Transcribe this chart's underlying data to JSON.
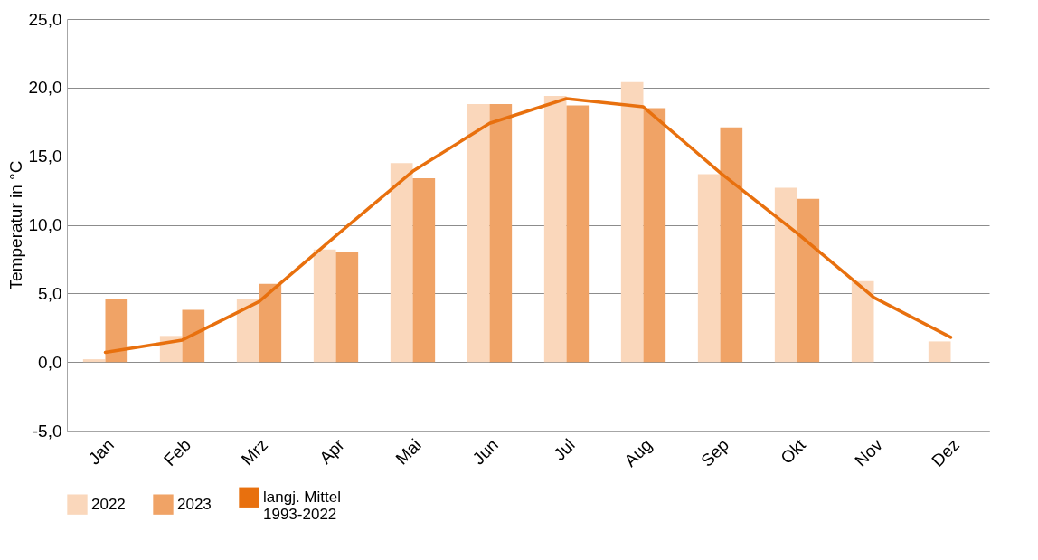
{
  "chart_data": {
    "type": "bar",
    "ylabel": "Temperatur in °C",
    "categories": [
      "Jan",
      "Feb",
      "Mrz",
      "Apr",
      "Mai",
      "Jun",
      "Jul",
      "Aug",
      "Sep",
      "Okt",
      "Nov",
      "Dez"
    ],
    "series": [
      {
        "name": "2022",
        "color": "#fad7bb",
        "values": [
          0.2,
          1.9,
          4.6,
          8.2,
          14.5,
          18.8,
          19.4,
          20.4,
          13.7,
          12.7,
          5.9,
          1.5
        ]
      },
      {
        "name": "2023",
        "color": "#f0a366",
        "values": [
          4.6,
          3.8,
          5.7,
          8.0,
          13.4,
          18.8,
          18.7,
          18.5,
          17.1,
          11.9,
          null,
          null
        ]
      },
      {
        "name": "langj. Mittel\n1993-2022",
        "type": "line",
        "color": "#e8700e",
        "values": [
          0.7,
          1.6,
          4.4,
          9.2,
          13.9,
          17.4,
          19.2,
          18.6,
          13.8,
          9.4,
          4.7,
          1.8
        ]
      }
    ],
    "ylim": [
      -5,
      25
    ],
    "yticks": [
      {
        "value": -5,
        "label": "-5,0"
      },
      {
        "value": 0,
        "label": "0,0"
      },
      {
        "value": 5,
        "label": "5,0"
      },
      {
        "value": 10,
        "label": "10,0"
      },
      {
        "value": 15,
        "label": "15,0"
      },
      {
        "value": 20,
        "label": "20,0"
      },
      {
        "value": 25,
        "label": "25,0"
      }
    ],
    "grid": "y",
    "legend": "bottom"
  }
}
